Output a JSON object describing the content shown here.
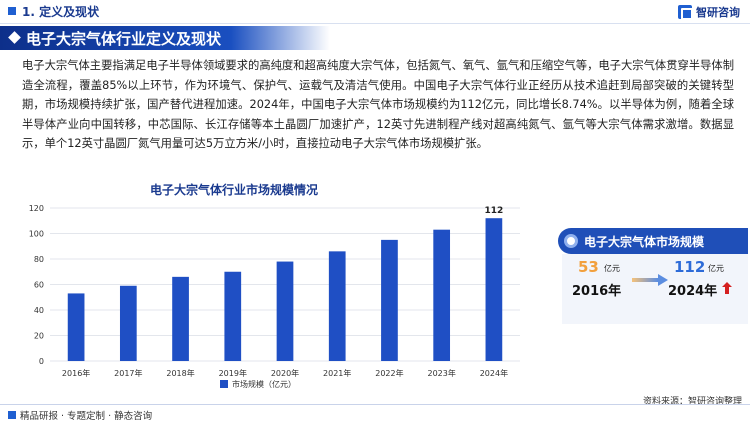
{
  "header": {
    "section": "1. 定义及现状",
    "brand": "智研咨询"
  },
  "banner": {
    "title": "电子大宗气体行业定义及现状"
  },
  "paragraph": "电子大宗气体主要指满足电子半导体领域要求的高纯度和超高纯度大宗气体，包括氮气、氧气、氩气和压缩空气等，电子大宗气体贯穿半导体制造全流程，覆盖85%以上环节，作为环境气、保护气、运载气及清洁气使用。中国电子大宗气体行业正经历从技术追赶到局部突破的关键转型期，市场规模持续扩张，国产替代进程加速。2024年，中国电子大宗气体市场规模约为112亿元，同比增长8.74%。以半导体为例，随着全球半导体产业向中国转移，中芯国际、长江存储等本土晶圆厂加速扩产，12英寸先进制程产线对超高纯氮气、氩气等大宗气体需求激增。数据显示，单个12英寸晶圆厂氮气用量可达5万立方米/小时，直接拉动电子大宗气体市场规模扩张。",
  "chart_data": {
    "type": "bar",
    "title": "电子大宗气体行业市场规模情况",
    "categories": [
      "2016年",
      "2017年",
      "2018年",
      "2019年",
      "2020年",
      "2021年",
      "2022年",
      "2023年",
      "2024年"
    ],
    "series": [
      {
        "name": "市场规模（亿元）",
        "values": [
          53,
          59,
          66,
          70,
          78,
          86,
          95,
          103,
          112
        ]
      }
    ],
    "y_ticks": [
      0,
      20,
      40,
      60,
      80,
      100,
      120
    ],
    "ylim": [
      0,
      120
    ],
    "data_labels": [
      {
        "index": 8,
        "text": "112"
      }
    ],
    "bar_color": "#1f4fc4",
    "legend_position": "bottom-left",
    "grid": true
  },
  "panel": {
    "title": "电子大宗气体市场规模",
    "start_value": "53",
    "start_unit": "亿元",
    "start_year": "2016年",
    "end_value": "112",
    "end_unit": "亿元",
    "end_year": "2024年"
  },
  "footer": {
    "left": "精品研报 · 专题定制 · 静态咨询",
    "source": "资料来源：智研咨询整理"
  }
}
